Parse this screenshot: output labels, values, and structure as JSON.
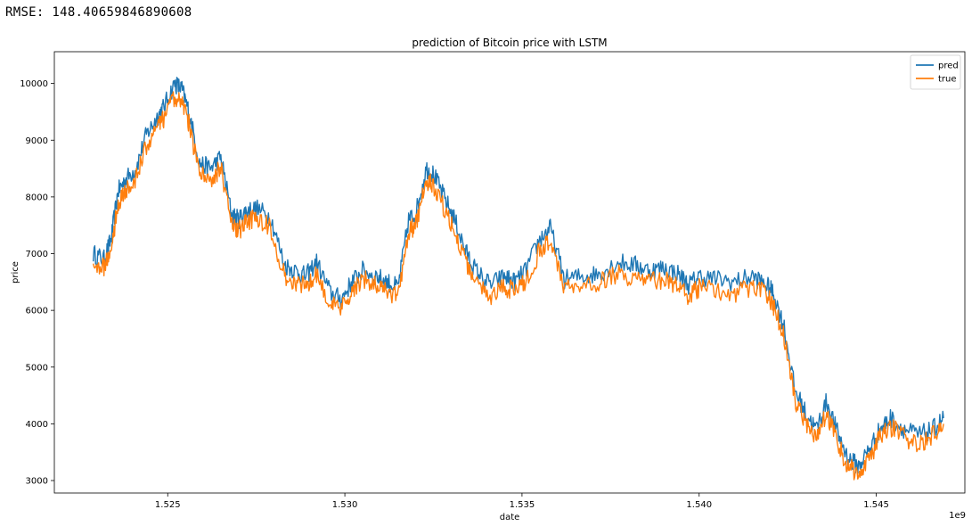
{
  "output": {
    "rmse_text": "RMSE: 148.40659846890608"
  },
  "chart_data": {
    "type": "line",
    "title": "prediction of Bitcoin price with LSTM",
    "xlabel": "date",
    "ylabel": "price",
    "x_offset_label": "1e9",
    "xlim": [
      1.5218,
      1.5475
    ],
    "ylim": [
      2780,
      10560
    ],
    "x_ticks": [
      1.525,
      1.53,
      1.535,
      1.54,
      1.545
    ],
    "x_tick_labels": [
      "1.525",
      "1.530",
      "1.535",
      "1.540",
      "1.545"
    ],
    "y_ticks": [
      3000,
      4000,
      5000,
      6000,
      7000,
      8000,
      9000,
      10000
    ],
    "y_tick_labels": [
      "3000",
      "4000",
      "5000",
      "6000",
      "7000",
      "8000",
      "9000",
      "10000"
    ],
    "legend_position": "top-right",
    "colors": {
      "pred": "#1f77b4",
      "true": "#ff7f0e"
    },
    "series": [
      {
        "name": "pred",
        "x": [
          1.5229,
          1.5232,
          1.5234,
          1.5236,
          1.5238,
          1.5241,
          1.5244,
          1.5247,
          1.5249,
          1.5252,
          1.5254,
          1.5256,
          1.5259,
          1.5262,
          1.5265,
          1.5268,
          1.527,
          1.5272,
          1.5275,
          1.5279,
          1.5283,
          1.5286,
          1.5289,
          1.5292,
          1.5296,
          1.5299,
          1.5302,
          1.5305,
          1.5309,
          1.5312,
          1.5315,
          1.5318,
          1.532,
          1.5323,
          1.5325,
          1.5328,
          1.5331,
          1.5334,
          1.5337,
          1.5341,
          1.5345,
          1.5348,
          1.5351,
          1.5355,
          1.5358,
          1.5362,
          1.5367,
          1.5372,
          1.5377,
          1.5382,
          1.5386,
          1.539,
          1.5394,
          1.5397,
          1.54,
          1.5405,
          1.541,
          1.5415,
          1.5419,
          1.5421,
          1.5424,
          1.5427,
          1.543,
          1.5433,
          1.5436,
          1.5439,
          1.5442,
          1.5445,
          1.5448,
          1.5451,
          1.5454,
          1.5458,
          1.5462,
          1.5466,
          1.5469
        ],
        "values": [
          7000,
          6900,
          7250,
          8100,
          8300,
          8500,
          9100,
          9400,
          9600,
          10000,
          9900,
          9500,
          8600,
          8500,
          8700,
          7700,
          7600,
          7750,
          7800,
          7650,
          6800,
          6700,
          6600,
          6850,
          6300,
          6200,
          6500,
          6700,
          6600,
          6500,
          6400,
          7600,
          7700,
          8500,
          8400,
          8000,
          7600,
          7050,
          6700,
          6450,
          6600,
          6500,
          6700,
          7250,
          7450,
          6550,
          6600,
          6650,
          6850,
          6800,
          6700,
          6750,
          6650,
          6450,
          6600,
          6550,
          6500,
          6600,
          6450,
          6300,
          5700,
          4600,
          4200,
          3900,
          4400,
          3850,
          3400,
          3250,
          3550,
          3900,
          4100,
          3900,
          3800,
          3900,
          4100
        ]
      },
      {
        "name": "true",
        "x": [
          1.5229,
          1.5232,
          1.5234,
          1.5236,
          1.5238,
          1.5241,
          1.5244,
          1.5247,
          1.5249,
          1.5252,
          1.5254,
          1.5256,
          1.5259,
          1.5262,
          1.5265,
          1.5268,
          1.527,
          1.5272,
          1.5275,
          1.5279,
          1.5283,
          1.5286,
          1.5289,
          1.5292,
          1.5296,
          1.5299,
          1.5302,
          1.5305,
          1.5309,
          1.5312,
          1.5315,
          1.5318,
          1.532,
          1.5323,
          1.5325,
          1.5328,
          1.5331,
          1.5334,
          1.5337,
          1.5341,
          1.5345,
          1.5348,
          1.5351,
          1.5355,
          1.5358,
          1.5362,
          1.5367,
          1.5372,
          1.5377,
          1.5382,
          1.5386,
          1.539,
          1.5394,
          1.5397,
          1.54,
          1.5405,
          1.541,
          1.5415,
          1.5419,
          1.5421,
          1.5424,
          1.5427,
          1.543,
          1.5433,
          1.5436,
          1.5439,
          1.5442,
          1.5445,
          1.5448,
          1.5451,
          1.5454,
          1.5458,
          1.5462,
          1.5466,
          1.5469
        ],
        "values": [
          6850,
          6750,
          7050,
          7900,
          8100,
          8300,
          8900,
          9200,
          9400,
          9750,
          9700,
          9300,
          8400,
          8300,
          8500,
          7500,
          7400,
          7550,
          7650,
          7450,
          6600,
          6500,
          6450,
          6650,
          6100,
          6000,
          6350,
          6550,
          6450,
          6300,
          6250,
          7400,
          7500,
          8300,
          8200,
          7800,
          7400,
          6850,
          6500,
          6250,
          6400,
          6350,
          6500,
          7050,
          7250,
          6400,
          6400,
          6500,
          6650,
          6550,
          6500,
          6550,
          6450,
          6250,
          6400,
          6350,
          6300,
          6400,
          6300,
          6050,
          5550,
          4400,
          4000,
          3750,
          4200,
          3650,
          3250,
          3100,
          3400,
          3750,
          3950,
          3750,
          3650,
          3800,
          4000
        ]
      }
    ]
  }
}
